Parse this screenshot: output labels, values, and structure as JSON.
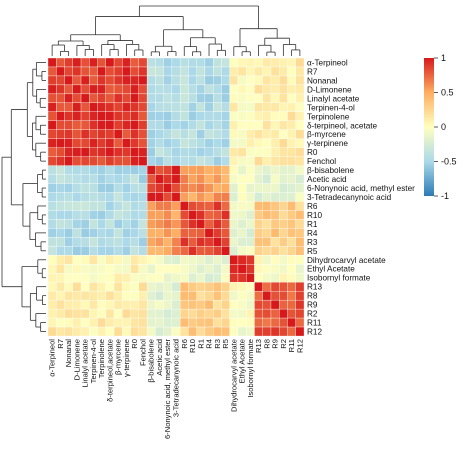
{
  "chart_data": {
    "type": "heatmap",
    "title": "",
    "rows": [
      "α-Terpineol",
      "R7",
      "Nonanal",
      "D-Limonene",
      "Linalyl acetate",
      "Terpinen-4-ol",
      "Terpinolene",
      "δ-terpineol, acetate",
      "β-myrcene",
      "γ-terpinene",
      "R0",
      "Fenchol",
      "β-bisabolene",
      "Acetic acid",
      "6-Nonynoic acid, methyl ester",
      "3-Tetradecanynoic acid",
      "R6",
      "R10",
      "R1",
      "R4",
      "R3",
      "R5",
      "Dihydrocarvyl acetate",
      "Ethyl Acetate",
      "Isobornyl formate",
      "R13",
      "R8",
      "R9",
      "R2",
      "R11",
      "R12"
    ],
    "columns": [
      "α-Terpineol",
      "R7",
      "Nonanal",
      "D-Limonene",
      "Linalyl acetate",
      "Terpinen-4-ol",
      "Terpinolene",
      "δ-terpineol,acetate",
      "β-myrcene",
      "γ-terpinene",
      "R0",
      "Fenchol",
      "β-bisabolene",
      "Acetic acid",
      "6-Nonynoic acid, methyl ester",
      "3-Tetradecanynoic acid",
      "R6",
      "R10",
      "R1",
      "R4",
      "R3",
      "R5",
      "Dihydrocarvyl acetate",
      "Ethyl Acetate",
      "Isobornyl formate",
      "R13",
      "R8",
      "R9",
      "R2",
      "R11",
      "R12"
    ],
    "groups": [
      0,
      0,
      0,
      0,
      0,
      0,
      0,
      0,
      0,
      0,
      0,
      0,
      1,
      1,
      1,
      1,
      2,
      2,
      2,
      2,
      2,
      2,
      3,
      3,
      3,
      4,
      4,
      4,
      4,
      4,
      4
    ],
    "group_block_values": [
      [
        0.9,
        -0.45,
        -0.45,
        0.05,
        0.1
      ],
      [
        -0.45,
        0.9,
        0.55,
        -0.1,
        -0.15
      ],
      [
        -0.45,
        0.55,
        0.85,
        -0.15,
        0.3
      ],
      [
        0.05,
        -0.1,
        -0.15,
        0.9,
        -0.05
      ],
      [
        0.1,
        -0.15,
        0.3,
        -0.05,
        0.8
      ]
    ],
    "value_range": [
      -1,
      1
    ],
    "colorbar": {
      "ticks": [
        "1",
        "0.5",
        "0",
        "-0.5",
        "-1"
      ]
    },
    "colors": {
      "high": "#d7191c",
      "mid": "#ffffbf",
      "low": "#2c7bb6"
    }
  }
}
